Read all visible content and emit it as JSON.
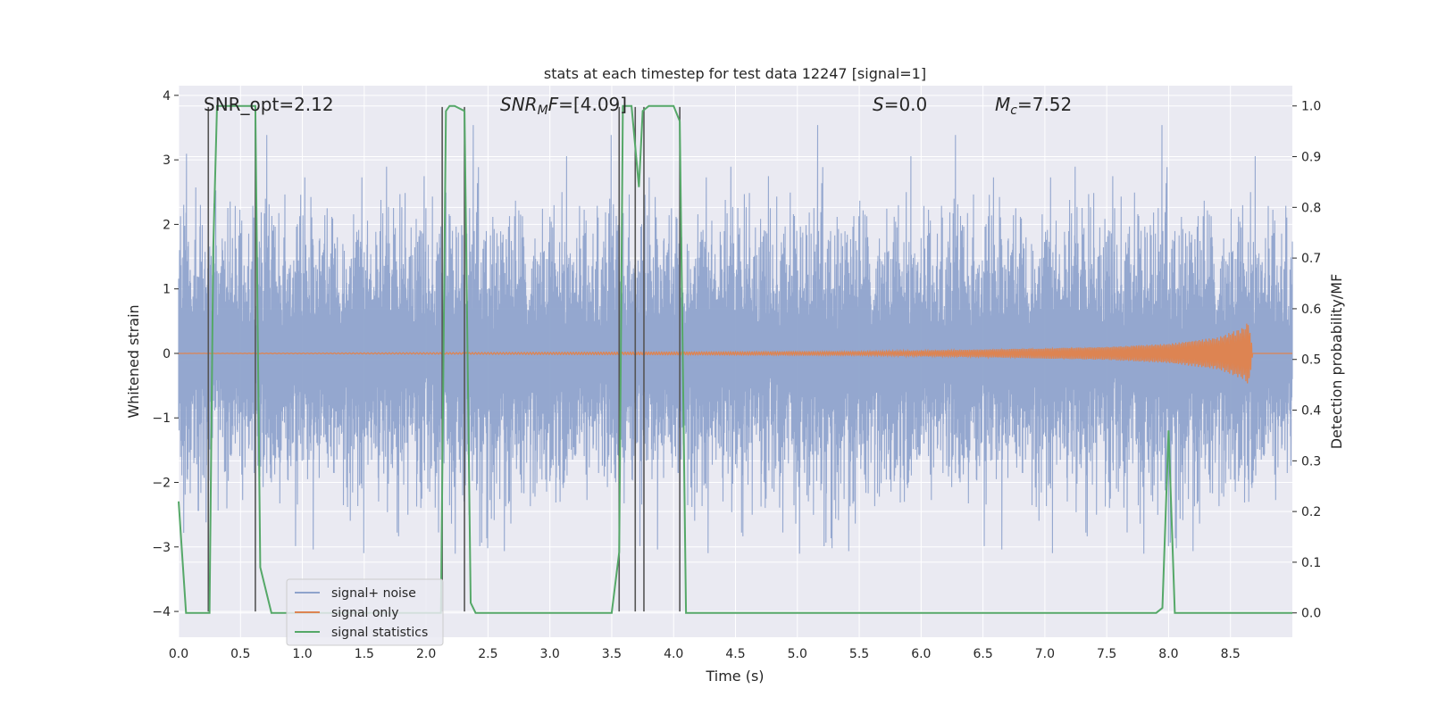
{
  "chart_data": {
    "type": "line",
    "title": "stats at each timestep for test data 12247 [signal=1]",
    "xlabel": "Time (s)",
    "ylabel": "Whitened strain",
    "y2label": "Detection probability/MF",
    "xlim": [
      0.0,
      9.0
    ],
    "ylim": [
      -4.4,
      4.15
    ],
    "y2lim": [
      -0.048,
      1.04
    ],
    "xticks": [
      "0.0",
      "0.5",
      "1.0",
      "1.5",
      "2.0",
      "2.5",
      "3.0",
      "3.5",
      "4.0",
      "4.5",
      "5.0",
      "5.5",
      "6.0",
      "6.5",
      "7.0",
      "7.5",
      "8.0",
      "8.5"
    ],
    "yticks": [
      "4",
      "3",
      "2",
      "1",
      "0",
      "−1",
      "−2",
      "−3",
      "−4"
    ],
    "y2ticks": [
      "1.0",
      "0.9",
      "0.8",
      "0.7",
      "0.6",
      "0.5",
      "0.4",
      "0.3",
      "0.2",
      "0.1",
      "0.0"
    ],
    "grid": true,
    "annotations": {
      "snr_opt": "SNR_opt=2.12",
      "snr_mf_italic": "SNR",
      "snr_mf_sub": "M",
      "snr_mf_italic2": "F",
      "snr_mf_value": "=[4.09]",
      "s_italic": "S",
      "s_value": "=0.0",
      "mc_italic": "M",
      "mc_sub": "c",
      "mc_value": "=7.52"
    },
    "legend": {
      "placement": "lower-left",
      "entries": [
        "signal+ noise",
        "signal only",
        "signal statistics"
      ]
    },
    "colors": {
      "noise": "#8fa3cc",
      "signal": "#dd8452",
      "stats": "#55a868",
      "vlines": "#555555",
      "background": "#eaeaf2",
      "grid": "#ffffff"
    },
    "series": [
      {
        "name": "signal+ noise",
        "description_note": "",
        "envelope_typical": [
          -2.2,
          2.2
        ],
        "envelope_peak": [
          -4.0,
          3.8
        ]
      },
      {
        "name": "signal only",
        "x": [
          0.0,
          5.5,
          6.5,
          7.5,
          8.0,
          8.4,
          8.6,
          8.65,
          8.68
        ],
        "amplitude": [
          0.0,
          0.03,
          0.06,
          0.1,
          0.15,
          0.25,
          0.4,
          0.5,
          0.0
        ]
      },
      {
        "name": "signal statistics",
        "x": [
          0.0,
          0.06,
          0.15,
          0.25,
          0.28,
          0.31,
          0.62,
          0.66,
          0.75,
          0.85,
          0.95,
          2.12,
          2.16,
          2.19,
          2.23,
          2.31,
          2.36,
          2.4,
          2.46,
          3.5,
          3.56,
          3.59,
          3.66,
          3.72,
          3.75,
          3.8,
          4.0,
          4.05,
          4.1,
          4.5,
          4.7,
          4.9,
          7.9,
          7.95,
          8.0,
          8.05,
          8.1,
          9.0
        ],
        "y": [
          0.22,
          0.0,
          0.0,
          0.0,
          0.72,
          1.0,
          1.0,
          0.09,
          0.0,
          0.0,
          0.0,
          0.0,
          0.99,
          1.0,
          1.0,
          0.99,
          0.02,
          0.0,
          0.0,
          0.0,
          0.12,
          1.0,
          1.0,
          0.84,
          0.99,
          1.0,
          1.0,
          0.97,
          0.0,
          0.0,
          0.0,
          0.0,
          0.0,
          0.01,
          0.36,
          0.0,
          0.0,
          0.0
        ]
      }
    ],
    "vlines_x": [
      0.24,
      0.62,
      2.13,
      2.31,
      3.56,
      3.69,
      3.76,
      4.05
    ]
  }
}
